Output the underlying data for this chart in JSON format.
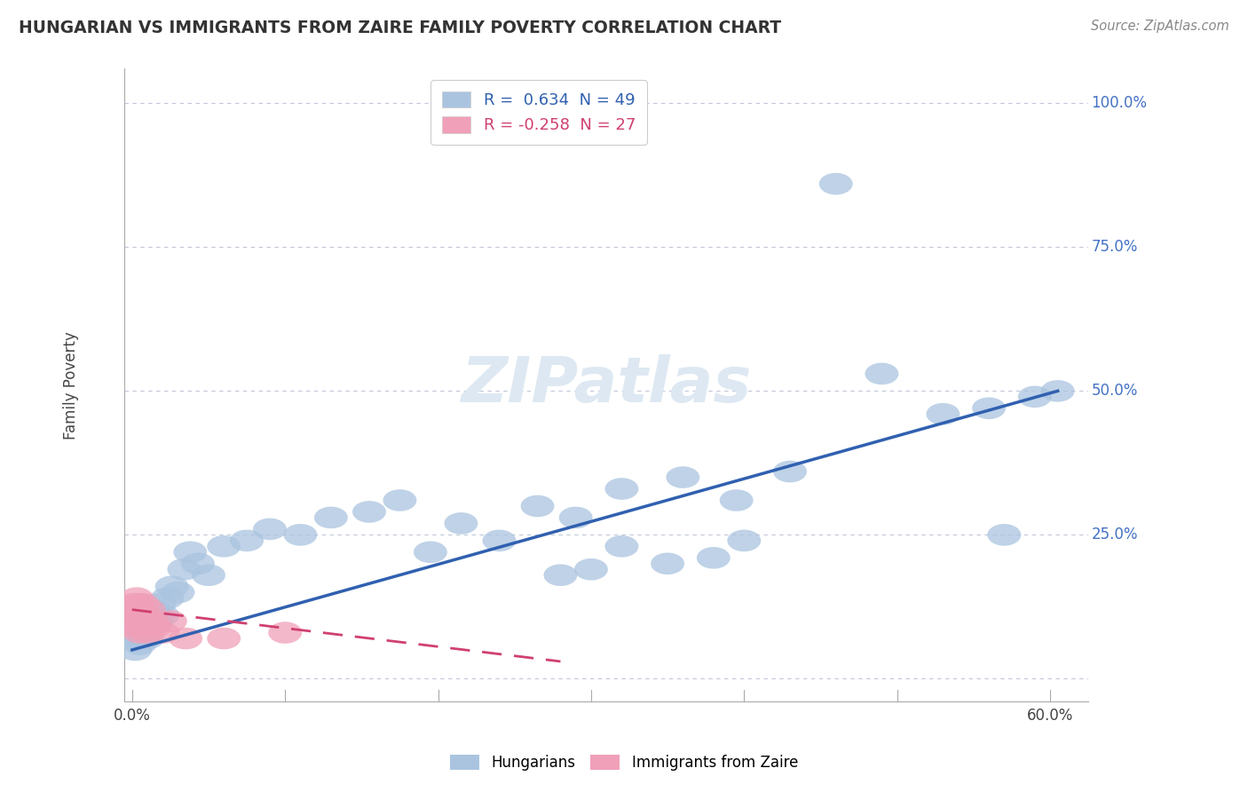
{
  "title": "HUNGARIAN VS IMMIGRANTS FROM ZAIRE FAMILY POVERTY CORRELATION CHART",
  "source": "Source: ZipAtlas.com",
  "ylabel": "Family Poverty",
  "ytick_values": [
    0.0,
    0.25,
    0.5,
    0.75,
    1.0
  ],
  "ytick_labels": [
    "",
    "25.0%",
    "50.0%",
    "75.0%",
    "100.0%"
  ],
  "xlim": [
    -0.005,
    0.625
  ],
  "ylim": [
    -0.04,
    1.06
  ],
  "color_hungarian": "#aac4e0",
  "color_zaire": "#f0a0b8",
  "line_color_hungarian": "#3060b0",
  "line_color_zaire": "#d04070",
  "grid_color": "#c0c8d8",
  "background_color": "#ffffff",
  "hung_x": [
    0.002,
    0.003,
    0.004,
    0.005,
    0.006,
    0.007,
    0.008,
    0.01,
    0.012,
    0.014,
    0.016,
    0.018,
    0.02,
    0.023,
    0.026,
    0.03,
    0.034,
    0.038,
    0.043,
    0.05,
    0.06,
    0.075,
    0.09,
    0.11,
    0.13,
    0.155,
    0.175,
    0.195,
    0.215,
    0.24,
    0.265,
    0.29,
    0.32,
    0.36,
    0.395,
    0.43,
    0.46,
    0.49,
    0.53,
    0.56,
    0.59,
    0.605,
    0.3,
    0.35,
    0.38,
    0.28,
    0.32,
    0.4,
    0.57
  ],
  "hung_y": [
    0.05,
    0.07,
    0.09,
    0.06,
    0.1,
    0.08,
    0.11,
    0.07,
    0.09,
    0.12,
    0.1,
    0.13,
    0.11,
    0.14,
    0.16,
    0.15,
    0.19,
    0.22,
    0.2,
    0.18,
    0.23,
    0.24,
    0.26,
    0.25,
    0.28,
    0.29,
    0.31,
    0.22,
    0.27,
    0.24,
    0.3,
    0.28,
    0.33,
    0.35,
    0.31,
    0.36,
    0.86,
    0.53,
    0.46,
    0.47,
    0.49,
    0.5,
    0.19,
    0.2,
    0.21,
    0.18,
    0.23,
    0.24,
    0.25
  ],
  "zaire_x": [
    0.001,
    0.001,
    0.002,
    0.002,
    0.003,
    0.003,
    0.003,
    0.004,
    0.004,
    0.005,
    0.005,
    0.005,
    0.006,
    0.006,
    0.007,
    0.007,
    0.008,
    0.009,
    0.01,
    0.011,
    0.013,
    0.015,
    0.02,
    0.025,
    0.035,
    0.06,
    0.1
  ],
  "zaire_y": [
    0.11,
    0.13,
    0.09,
    0.12,
    0.1,
    0.12,
    0.14,
    0.11,
    0.13,
    0.1,
    0.12,
    0.08,
    0.11,
    0.09,
    0.13,
    0.1,
    0.09,
    0.11,
    0.08,
    0.12,
    0.1,
    0.09,
    0.08,
    0.1,
    0.07,
    0.07,
    0.08
  ],
  "hung_line_x": [
    0.0,
    0.605
  ],
  "hung_line_y": [
    0.05,
    0.5
  ],
  "zaire_line_x": [
    0.0,
    0.28
  ],
  "zaire_line_y": [
    0.12,
    0.03
  ]
}
